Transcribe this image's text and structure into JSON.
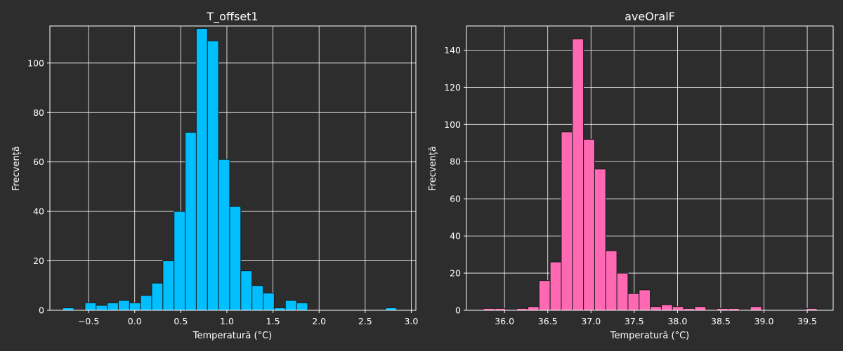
{
  "figure": {
    "background": "#2d2d2d",
    "grid_color": "#ffffff",
    "text_color": "#ffffff",
    "edge_color": "#1a1a1a"
  },
  "chart_data": [
    {
      "type": "bar",
      "subtype": "histogram",
      "title": "T_offset1",
      "xlabel": "Temperatură (°C)",
      "ylabel": "Frecvență",
      "color": "#00bfff",
      "grid": true,
      "xlim": [
        -0.92,
        3.05
      ],
      "ylim": [
        0,
        115
      ],
      "xticks": [
        -0.5,
        0.0,
        0.5,
        1.0,
        1.5,
        2.0,
        2.5,
        3.0
      ],
      "xtick_labels": [
        "−0.5",
        "0.0",
        "0.5",
        "1.0",
        "1.5",
        "2.0",
        "2.5",
        "3.0"
      ],
      "yticks": [
        0,
        20,
        40,
        60,
        80,
        100
      ],
      "ytick_labels": [
        "0",
        "20",
        "40",
        "60",
        "80",
        "100"
      ],
      "bin_start": -0.7815,
      "bin_width": 0.1208,
      "values": [
        1,
        0,
        3,
        2,
        3,
        4,
        3,
        6,
        11,
        20,
        40,
        72,
        114,
        109,
        61,
        42,
        16,
        10,
        7,
        1,
        4,
        3,
        0,
        0,
        0,
        0,
        0,
        0,
        0,
        1
      ]
    },
    {
      "type": "bar",
      "subtype": "histogram",
      "title": "aveOralF",
      "xlabel": "Temperatură (°C)",
      "ylabel": "Frecvență",
      "color": "#ff69b4",
      "grid": true,
      "xlim": [
        35.56,
        39.8
      ],
      "ylim": [
        0,
        153
      ],
      "xticks": [
        36.0,
        36.5,
        37.0,
        37.5,
        38.0,
        38.5,
        39.0,
        39.5
      ],
      "xtick_labels": [
        "36.0",
        "36.5",
        "37.0",
        "37.5",
        "38.0",
        "38.5",
        "39.0",
        "39.5"
      ],
      "yticks": [
        0,
        20,
        40,
        60,
        80,
        100,
        120,
        140
      ],
      "ytick_labels": [
        "0",
        "20",
        "40",
        "60",
        "80",
        "100",
        "120",
        "140"
      ],
      "bin_start": 35.756,
      "bin_width": 0.1286,
      "values": [
        1,
        1,
        0,
        1,
        2,
        16,
        26,
        96,
        146,
        92,
        76,
        32,
        20,
        9,
        11,
        2,
        3,
        2,
        1,
        2,
        0,
        1,
        1,
        0,
        2,
        0,
        0,
        0,
        0,
        1
      ]
    }
  ]
}
